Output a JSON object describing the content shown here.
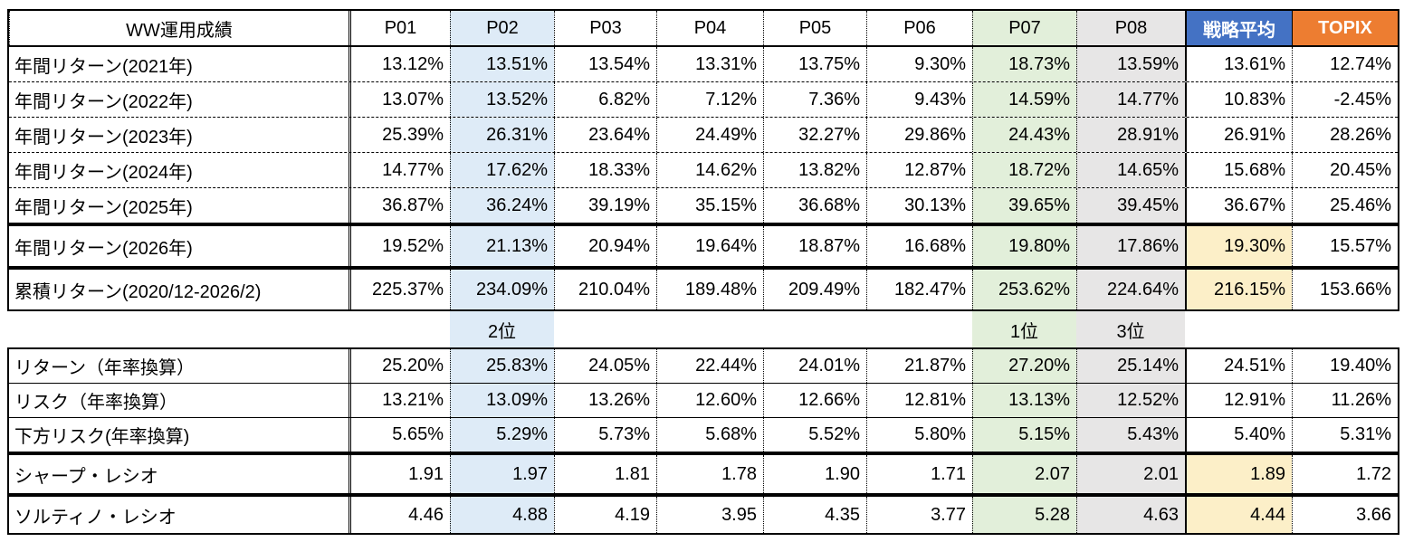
{
  "colors": {
    "strategy_header": "#4472C4",
    "topix_header": "#ED7D31",
    "p02_tint": "#DEEBF7",
    "p07_tint": "#E2EFDA",
    "p08_tint": "#E7E6E6",
    "yellow_highlight": "#FCEFC8"
  },
  "chart_data": {
    "type": "table",
    "title": "WW運用成績",
    "corner_label": "WW運用成績",
    "columns": [
      {
        "key": "P01",
        "label": "P01"
      },
      {
        "key": "P02",
        "label": "P02",
        "tint": "blue"
      },
      {
        "key": "P03",
        "label": "P03"
      },
      {
        "key": "P04",
        "label": "P04"
      },
      {
        "key": "P05",
        "label": "P05"
      },
      {
        "key": "P06",
        "label": "P06"
      },
      {
        "key": "P07",
        "label": "P07",
        "tint": "green"
      },
      {
        "key": "P08",
        "label": "P08",
        "tint": "gray"
      },
      {
        "key": "SA",
        "label": "戦略平均",
        "header_style": "blue"
      },
      {
        "key": "TOPIX",
        "label": "TOPIX",
        "header_style": "orange"
      }
    ],
    "rank_row": {
      "P02": "2位",
      "P07": "1位",
      "P08": "3位"
    },
    "sections": [
      {
        "id": "annual",
        "box": true,
        "has_header": true,
        "rows": [
          {
            "id": "y2021",
            "label": "年間リターン(2021年)",
            "values": [
              "13.12%",
              "13.51%",
              "13.54%",
              "13.31%",
              "13.75%",
              "9.30%",
              "18.73%",
              "13.59%",
              "13.61%",
              "12.74%"
            ]
          },
          {
            "id": "y2022",
            "label": "年間リターン(2022年)",
            "values": [
              "13.07%",
              "13.52%",
              "6.82%",
              "7.12%",
              "7.36%",
              "9.43%",
              "14.59%",
              "14.77%",
              "10.83%",
              "-2.45%"
            ]
          },
          {
            "id": "y2023",
            "label": "年間リターン(2023年)",
            "values": [
              "25.39%",
              "26.31%",
              "23.64%",
              "24.49%",
              "32.27%",
              "29.86%",
              "24.43%",
              "28.91%",
              "26.91%",
              "28.26%"
            ]
          },
          {
            "id": "y2024",
            "label": "年間リターン(2024年)",
            "values": [
              "14.77%",
              "17.62%",
              "18.33%",
              "14.62%",
              "13.82%",
              "12.87%",
              "18.72%",
              "14.65%",
              "15.68%",
              "20.45%"
            ]
          },
          {
            "id": "y2025",
            "label": "年間リターン(2025年)",
            "values": [
              "36.87%",
              "36.24%",
              "39.19%",
              "35.15%",
              "36.68%",
              "30.13%",
              "39.65%",
              "39.45%",
              "36.67%",
              "25.46%"
            ]
          }
        ]
      },
      {
        "id": "annual2026",
        "box": true,
        "sa_highlight": true,
        "rows": [
          {
            "id": "y2026",
            "label": "年間リターン(2026年)",
            "values": [
              "19.52%",
              "21.13%",
              "20.94%",
              "19.64%",
              "18.87%",
              "16.68%",
              "19.80%",
              "17.86%",
              "19.30%",
              "15.57%"
            ]
          }
        ]
      },
      {
        "id": "cumulative",
        "box": true,
        "sa_highlight": true,
        "rows": [
          {
            "id": "cumulative",
            "label": "累積リターン(2020/12-2026/2)",
            "values": [
              "225.37%",
              "234.09%",
              "210.04%",
              "189.48%",
              "209.49%",
              "182.47%",
              "253.62%",
              "224.64%",
              "216.15%",
              "153.66%"
            ]
          }
        ]
      },
      {
        "id": "rank",
        "box": false,
        "type": "rank"
      },
      {
        "id": "stats",
        "box": true,
        "rows": [
          {
            "id": "return-annualized",
            "label": "リターン（年率換算）",
            "values": [
              "25.20%",
              "25.83%",
              "24.05%",
              "22.44%",
              "24.01%",
              "21.87%",
              "27.20%",
              "25.14%",
              "24.51%",
              "19.40%"
            ]
          },
          {
            "id": "risk-annualized",
            "label": "リスク（年率換算）",
            "values": [
              "13.21%",
              "13.09%",
              "13.26%",
              "12.60%",
              "12.66%",
              "12.81%",
              "13.13%",
              "12.52%",
              "12.91%",
              "11.26%"
            ]
          },
          {
            "id": "downside-risk-annualized",
            "label": "下方リスク(年率換算)",
            "values": [
              "5.65%",
              "5.29%",
              "5.73%",
              "5.68%",
              "5.52%",
              "5.80%",
              "5.15%",
              "5.43%",
              "5.40%",
              "5.31%"
            ]
          }
        ]
      },
      {
        "id": "sharpe",
        "box": true,
        "sa_highlight": true,
        "rows": [
          {
            "id": "sharpe-ratio",
            "label": "シャープ・レシオ",
            "values": [
              "1.91",
              "1.97",
              "1.81",
              "1.78",
              "1.90",
              "1.71",
              "2.07",
              "2.01",
              "1.89",
              "1.72"
            ]
          }
        ]
      },
      {
        "id": "sortino",
        "box": true,
        "sa_highlight": true,
        "rows": [
          {
            "id": "sortino-ratio",
            "label": "ソルティノ・レシオ",
            "values": [
              "4.46",
              "4.88",
              "4.19",
              "3.95",
              "4.35",
              "3.77",
              "5.28",
              "4.63",
              "4.44",
              "3.66"
            ]
          }
        ]
      }
    ]
  }
}
